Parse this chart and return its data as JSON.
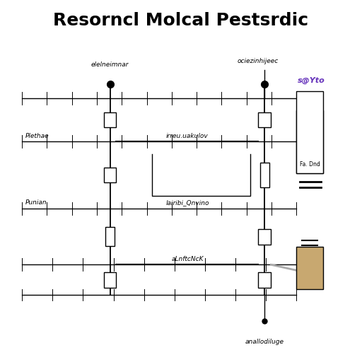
{
  "title": "Resorncl Molcal Pestsrdic",
  "title_fontsize": 18,
  "background_color": "#ffffff",
  "line_color": "#000000",
  "tan_color": "#c8a870",
  "purple_text": "s@Yto",
  "purple_color": "#6633bb",
  "gray_color": "#aaaaaa",
  "label_left1": "Plethae",
  "label_left2": "Punian",
  "label_center1": "irreu.uakulov",
  "label_center2": "lairibi_Qnvino",
  "label_center3": "aLnftcNcK",
  "label_top1": "elelneimnar",
  "label_top2": "ociezinhijeec",
  "label_bottom": "anallodiluge",
  "label_right1": "Fa. Dnd",
  "figsize": [
    5.12,
    5.12
  ],
  "dpi": 100
}
